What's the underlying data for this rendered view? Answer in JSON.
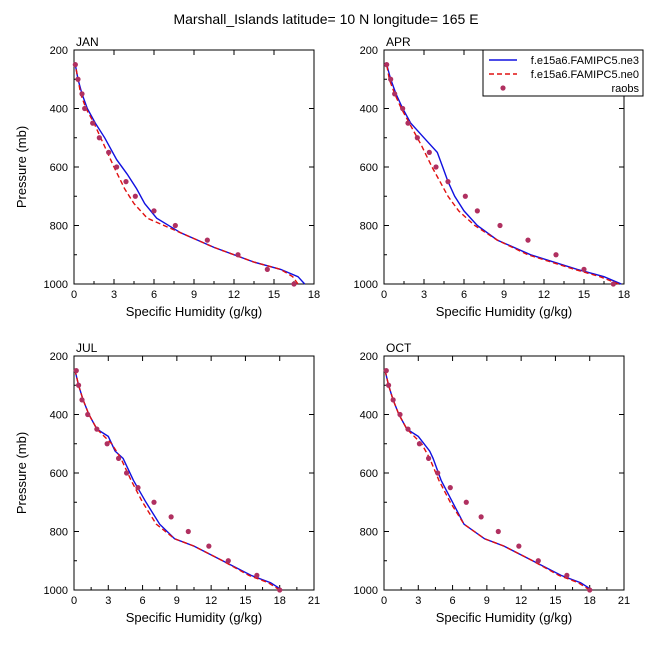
{
  "title": "Marshall_Islands  latitude= 10 N longitude= 165 E",
  "colors": {
    "model1": "#1010e0",
    "model2": "#e01010",
    "obs": "#b03060",
    "axis": "#000000"
  },
  "legend": {
    "position": "top-right of first-row right panel",
    "entries": [
      {
        "label": "f.e15a6.FAMIPC5.ne3",
        "style": "solid-line",
        "color": "#1010e0"
      },
      {
        "label": "f.e15a6.FAMIPC5.ne0",
        "style": "dashed-line",
        "color": "#e01010"
      },
      {
        "label": "raobs",
        "style": "marker",
        "color": "#b03060"
      }
    ]
  },
  "chart_data": [
    {
      "type": "line",
      "panel": "JAN",
      "title": "JAN",
      "xlabel": "Specific Humidity (g/kg)",
      "ylabel": "Pressure (mb)",
      "xlim": [
        0,
        18
      ],
      "ylim": [
        1000,
        200
      ],
      "xticks": [
        0,
        3,
        6,
        9,
        12,
        15,
        18
      ],
      "yticks": [
        200,
        400,
        600,
        800,
        1000
      ],
      "series": [
        {
          "name": "f.e15a6.FAMIPC5.ne3",
          "style": "solid",
          "x": [
            17.3,
            16.8,
            15.5,
            13.5,
            10.5,
            8.0,
            6.2,
            5.3,
            4.7,
            4.0,
            3.2,
            2.3,
            1.6,
            1.0,
            0.6,
            0.3,
            0.1
          ],
          "y": [
            1000,
            975,
            950,
            925,
            875,
            825,
            775,
            725,
            675,
            625,
            575,
            500,
            450,
            400,
            350,
            300,
            250
          ]
        },
        {
          "name": "f.e15a6.FAMIPC5.ne0",
          "style": "dashed",
          "x": [
            16.8,
            16.4,
            15.5,
            13.5,
            10.5,
            8.0,
            5.5,
            4.5,
            3.8,
            3.0,
            2.0,
            1.5,
            0.9,
            0.5,
            0.3,
            0.1
          ],
          "y": [
            1000,
            975,
            950,
            925,
            875,
            825,
            775,
            725,
            675,
            600,
            500,
            450,
            400,
            350,
            300,
            250
          ]
        },
        {
          "name": "raobs",
          "style": "markers",
          "x": [
            16.5,
            14.5,
            12.3,
            10.0,
            7.6,
            6.0,
            4.6,
            3.9,
            3.2,
            2.6,
            1.9,
            1.4,
            0.8,
            0.6,
            0.3,
            0.1
          ],
          "y": [
            1000,
            950,
            900,
            850,
            800,
            750,
            700,
            650,
            600,
            550,
            500,
            450,
            400,
            350,
            300,
            250
          ]
        }
      ]
    },
    {
      "type": "line",
      "panel": "APR",
      "title": "APR",
      "xlabel": "Specific Humidity (g/kg)",
      "ylabel": "",
      "xlim": [
        0,
        18
      ],
      "ylim": [
        1000,
        200
      ],
      "xticks": [
        0,
        3,
        6,
        9,
        12,
        15,
        18
      ],
      "yticks": [
        200,
        400,
        600,
        800,
        1000
      ],
      "series": [
        {
          "name": "f.e15a6.FAMIPC5.ne3",
          "style": "solid",
          "x": [
            17.8,
            16.5,
            14.5,
            11.0,
            8.5,
            7.0,
            6.0,
            5.3,
            4.8,
            4.4,
            4.0,
            3.0,
            2.0,
            1.4,
            0.9,
            0.5,
            0.2
          ],
          "y": [
            1000,
            975,
            950,
            900,
            850,
            800,
            750,
            700,
            650,
            600,
            550,
            500,
            450,
            400,
            350,
            300,
            250
          ]
        },
        {
          "name": "f.e15a6.FAMIPC5.ne0",
          "style": "dashed",
          "x": [
            17.6,
            16.2,
            14.3,
            10.8,
            8.5,
            6.8,
            5.6,
            4.8,
            4.2,
            3.6,
            2.8,
            1.9,
            1.3,
            0.8,
            0.4,
            0.2
          ],
          "y": [
            1000,
            975,
            950,
            900,
            850,
            800,
            750,
            700,
            650,
            600,
            525,
            450,
            400,
            350,
            300,
            250
          ]
        },
        {
          "name": "raobs",
          "style": "markers",
          "x": [
            17.2,
            15.0,
            12.9,
            10.8,
            8.7,
            7.0,
            6.1,
            4.8,
            3.9,
            3.4,
            2.5,
            1.8,
            1.4,
            0.8,
            0.5,
            0.2
          ],
          "y": [
            1000,
            950,
            900,
            850,
            800,
            750,
            700,
            650,
            600,
            550,
            500,
            450,
            400,
            350,
            300,
            250
          ]
        }
      ]
    },
    {
      "type": "line",
      "panel": "JUL",
      "title": "JUL",
      "xlabel": "Specific Humidity (g/kg)",
      "ylabel": "Pressure (mb)",
      "xlim": [
        0,
        21
      ],
      "ylim": [
        1000,
        200
      ],
      "xticks": [
        0,
        3,
        6,
        9,
        12,
        15,
        18,
        21
      ],
      "yticks": [
        200,
        400,
        600,
        800,
        1000
      ],
      "series": [
        {
          "name": "f.e15a6.FAMIPC5.ne3",
          "style": "solid",
          "x": [
            18.2,
            17.2,
            15.5,
            13.0,
            10.5,
            8.8,
            7.5,
            6.3,
            5.2,
            4.3,
            3.6,
            3.0,
            2.0,
            1.3,
            0.8,
            0.4,
            0.1
          ],
          "y": [
            1000,
            975,
            950,
            900,
            850,
            825,
            775,
            700,
            625,
            550,
            525,
            475,
            450,
            400,
            350,
            300,
            250
          ]
        },
        {
          "name": "f.e15a6.FAMIPC5.ne0",
          "style": "dashed",
          "x": [
            18.0,
            17.0,
            15.3,
            13.0,
            10.5,
            8.8,
            7.2,
            6.0,
            5.0,
            4.1,
            3.3,
            2.0,
            1.3,
            0.8,
            0.4,
            0.1
          ],
          "y": [
            1000,
            975,
            950,
            900,
            850,
            825,
            775,
            700,
            625,
            550,
            500,
            450,
            400,
            350,
            300,
            250
          ]
        },
        {
          "name": "raobs",
          "style": "markers",
          "x": [
            18.0,
            16.0,
            13.5,
            11.8,
            10.0,
            8.5,
            7.0,
            5.6,
            4.6,
            3.9,
            2.9,
            2.0,
            1.2,
            0.7,
            0.4,
            0.2
          ],
          "y": [
            1000,
            950,
            900,
            850,
            800,
            750,
            700,
            650,
            600,
            550,
            500,
            450,
            400,
            350,
            300,
            250
          ]
        }
      ]
    },
    {
      "type": "line",
      "panel": "OCT",
      "title": "OCT",
      "xlabel": "Specific Humidity (g/kg)",
      "ylabel": "",
      "xlim": [
        0,
        21
      ],
      "ylim": [
        1000,
        200
      ],
      "xticks": [
        0,
        3,
        6,
        9,
        12,
        15,
        18,
        21
      ],
      "yticks": [
        200,
        400,
        600,
        800,
        1000
      ],
      "series": [
        {
          "name": "f.e15a6.FAMIPC5.ne3",
          "style": "solid",
          "x": [
            18.2,
            17.2,
            15.5,
            13.0,
            10.5,
            8.8,
            7.0,
            6.0,
            5.0,
            4.3,
            4.0,
            3.0,
            2.0,
            1.3,
            0.8,
            0.4,
            0.1
          ],
          "y": [
            1000,
            975,
            950,
            900,
            850,
            825,
            775,
            700,
            625,
            550,
            525,
            475,
            450,
            400,
            350,
            300,
            250
          ]
        },
        {
          "name": "f.e15a6.FAMIPC5.ne0",
          "style": "dashed",
          "x": [
            18.0,
            17.0,
            15.3,
            13.0,
            10.5,
            8.8,
            7.0,
            5.8,
            4.8,
            4.0,
            3.3,
            2.0,
            1.3,
            0.8,
            0.4,
            0.1
          ],
          "y": [
            1000,
            975,
            950,
            900,
            850,
            825,
            775,
            700,
            625,
            550,
            500,
            450,
            400,
            350,
            300,
            250
          ]
        },
        {
          "name": "raobs",
          "style": "markers",
          "x": [
            18.0,
            16.0,
            13.5,
            11.8,
            10.0,
            8.5,
            7.2,
            5.8,
            4.7,
            3.9,
            3.1,
            2.1,
            1.4,
            0.8,
            0.4,
            0.2
          ],
          "y": [
            1000,
            950,
            900,
            850,
            800,
            750,
            700,
            650,
            600,
            550,
            500,
            450,
            400,
            350,
            300,
            250
          ]
        }
      ]
    }
  ]
}
